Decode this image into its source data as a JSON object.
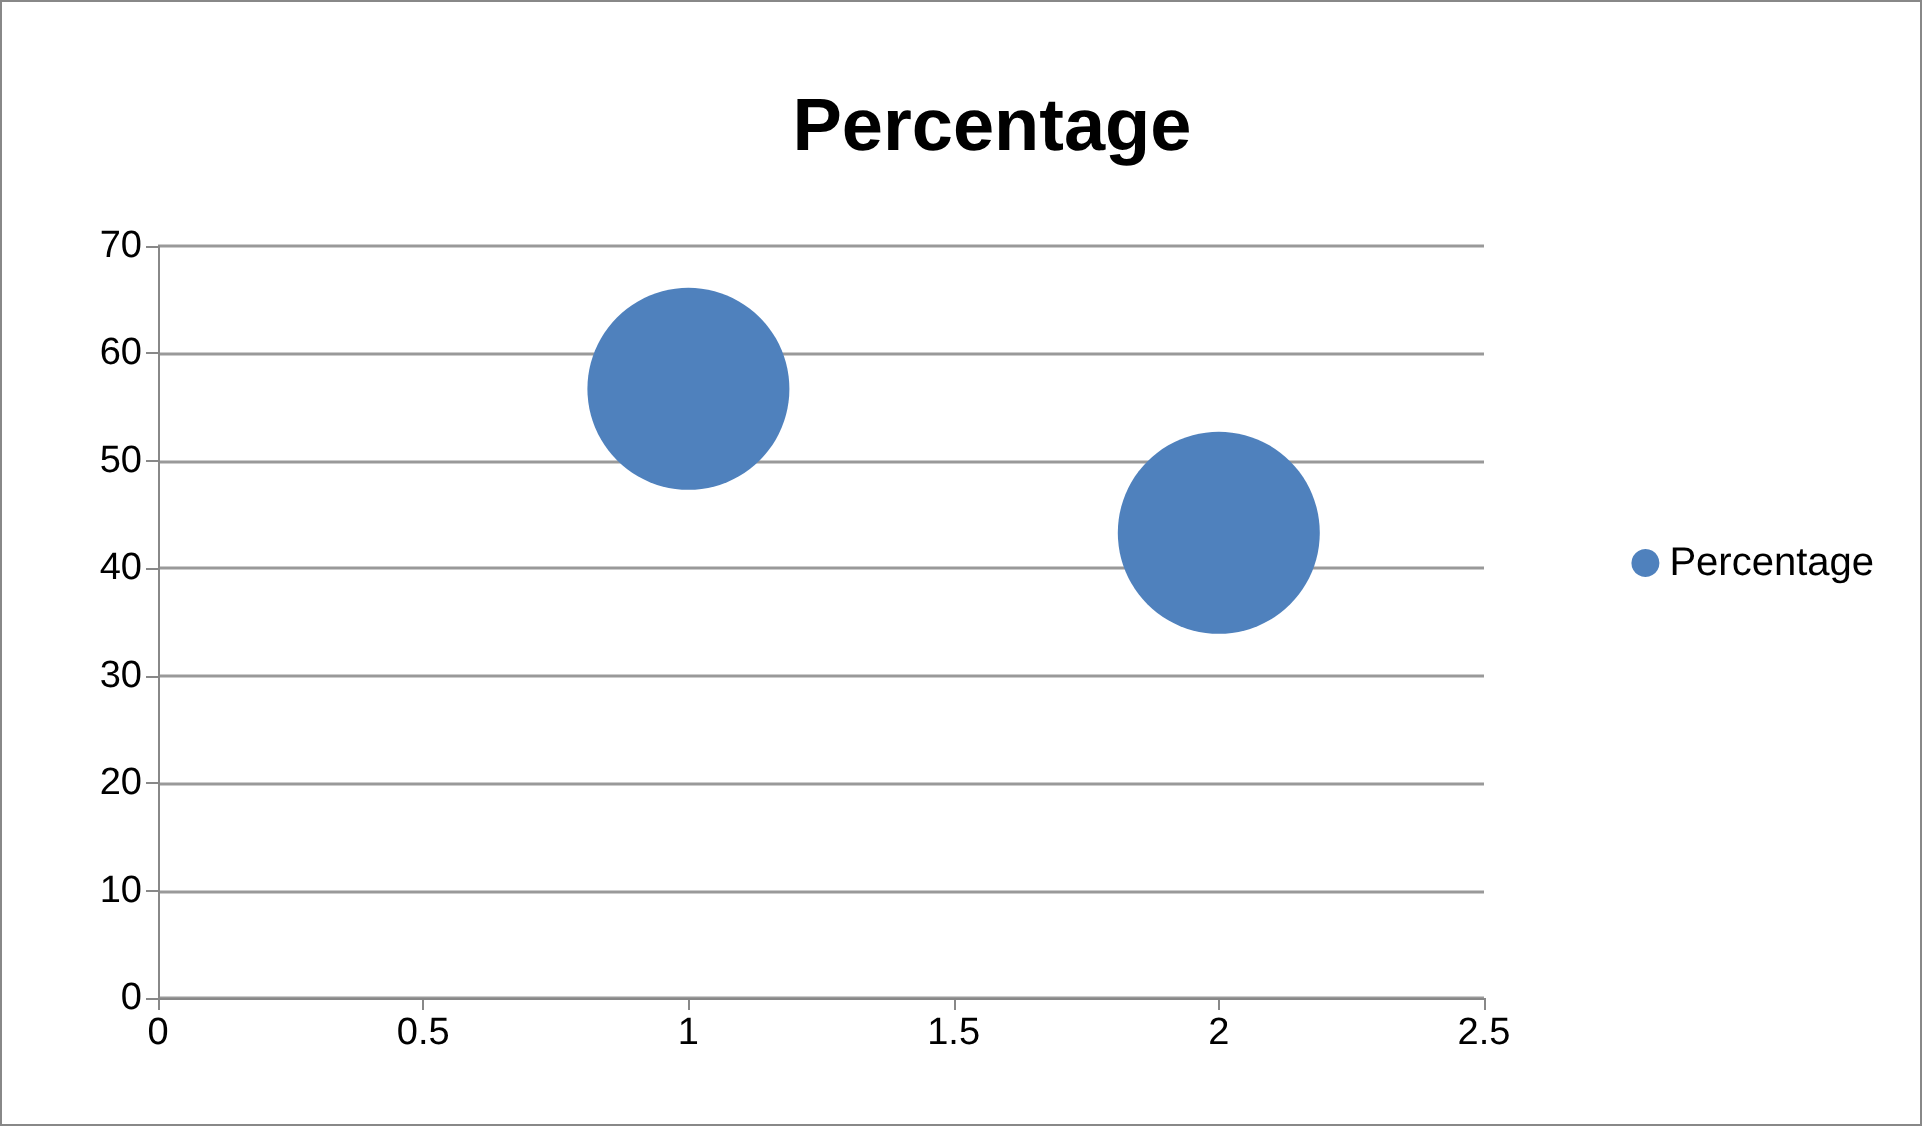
{
  "chart_data": {
    "type": "bubble",
    "title": "Percentage",
    "x": [
      1,
      2
    ],
    "series": [
      {
        "name": "Percentage",
        "color": "#4f81bd",
        "values": [
          56.7,
          43.3
        ],
        "sizes": [
          1,
          1
        ]
      }
    ],
    "xlim": [
      0,
      2.5
    ],
    "xticks": [
      0,
      0.5,
      1,
      1.5,
      2,
      2.5
    ],
    "ylim": [
      0,
      70
    ],
    "yticks": [
      0,
      10,
      20,
      30,
      40,
      50,
      60,
      70
    ],
    "grid": "y",
    "legend": "right",
    "marker": "circle"
  }
}
